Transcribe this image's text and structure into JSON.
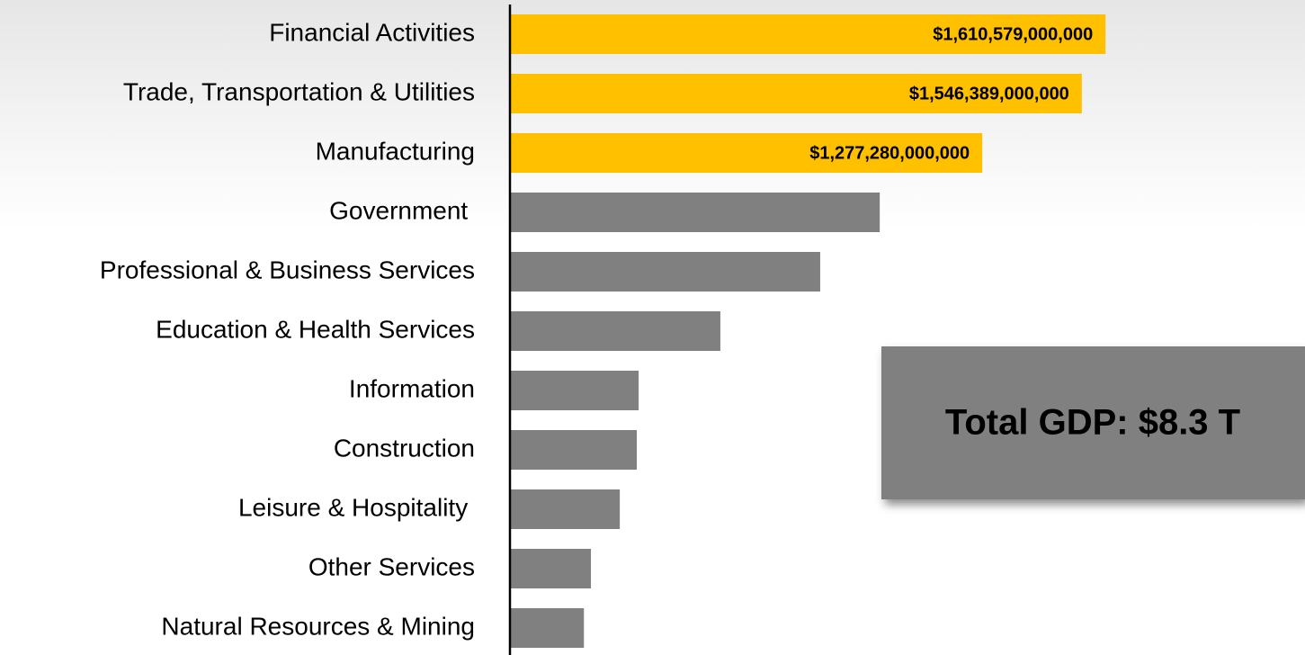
{
  "chart_data": {
    "type": "bar",
    "orientation": "horizontal",
    "categories": [
      "Financial Activities",
      "Trade, Transportation & Utilities",
      "Manufacturing",
      "Government ",
      "Professional & Business Services",
      "Education & Health Services",
      "Information",
      "Construction",
      "Leisure & Hospitality ",
      "Other Services",
      "Natural Resources & Mining"
    ],
    "values": [
      1610579000000,
      1546389000000,
      1277280000000,
      1000000000000,
      839000000000,
      569000000000,
      348000000000,
      343000000000,
      297000000000,
      219000000000,
      200000000000
    ],
    "value_labels": [
      "$1,610,579,000,000",
      "$1,546,389,000,000",
      "$1,277,280,000,000",
      null,
      null,
      null,
      null,
      null,
      null,
      null,
      null
    ],
    "colors": [
      "#ffc000",
      "#ffc000",
      "#ffc000",
      "#808080",
      "#808080",
      "#808080",
      "#808080",
      "#808080",
      "#808080",
      "#808080",
      "#808080"
    ],
    "xlim": [
      0,
      2150000000000
    ],
    "annotation": "Total GDP: $8.3 T"
  }
}
